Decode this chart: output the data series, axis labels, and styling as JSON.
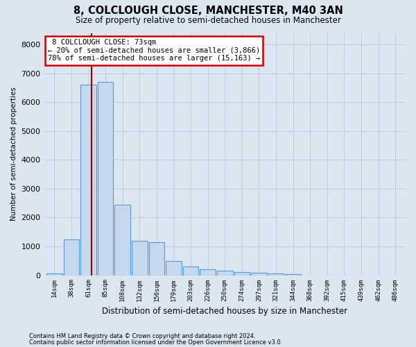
{
  "title1": "8, COLCLOUGH CLOSE, MANCHESTER, M40 3AN",
  "title2": "Size of property relative to semi-detached houses in Manchester",
  "xlabel": "Distribution of semi-detached houses by size in Manchester",
  "ylabel": "Number of semi-detached properties",
  "footer1": "Contains HM Land Registry data © Crown copyright and database right 2024.",
  "footer2": "Contains public sector information licensed under the Open Government Licence v3.0.",
  "categories": [
    "14sqm",
    "38sqm",
    "61sqm",
    "85sqm",
    "108sqm",
    "132sqm",
    "156sqm",
    "179sqm",
    "203sqm",
    "226sqm",
    "250sqm",
    "274sqm",
    "297sqm",
    "321sqm",
    "344sqm",
    "368sqm",
    "392sqm",
    "415sqm",
    "439sqm",
    "462sqm",
    "486sqm"
  ],
  "values": [
    50,
    1250,
    6600,
    6700,
    2450,
    1200,
    1150,
    500,
    300,
    200,
    160,
    110,
    80,
    50,
    30,
    0,
    0,
    0,
    0,
    0,
    0
  ],
  "bar_color": "#c5d8ee",
  "bar_edge_color": "#5b9bd5",
  "grid_color": "#b8c8d8",
  "background_color": "#dce6f0",
  "property_label": "8 COLCLOUGH CLOSE: 73sqm",
  "smaller_pct": 20,
  "smaller_count": "3,866",
  "larger_pct": 78,
  "larger_count": "15,163",
  "vline_pos": 2.2,
  "annotation_box_color": "#ffffff",
  "annotation_box_edge": "#cc0000",
  "vline_color": "#990000",
  "ylim": [
    0,
    8400
  ],
  "yticks": [
    0,
    1000,
    2000,
    3000,
    4000,
    5000,
    6000,
    7000,
    8000
  ]
}
